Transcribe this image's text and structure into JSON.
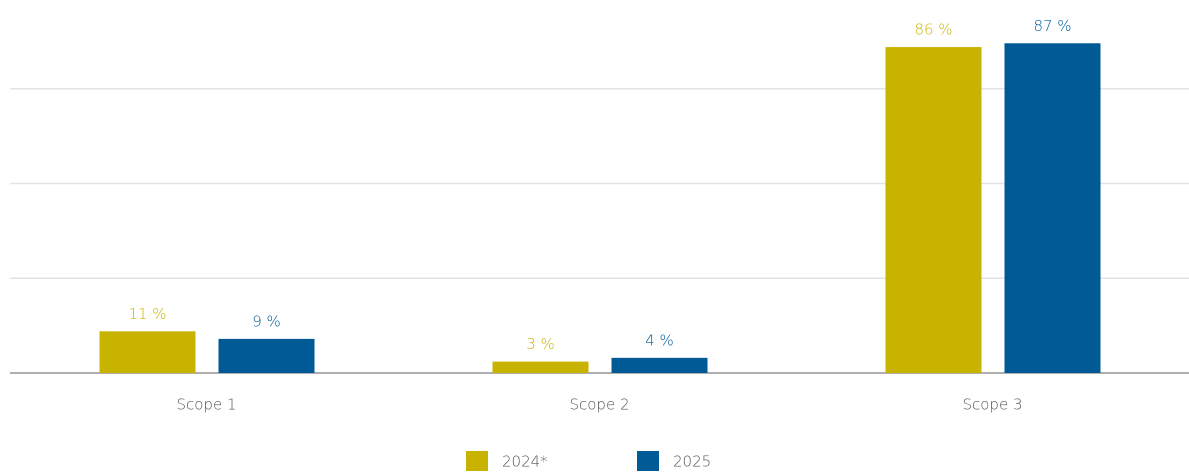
{
  "chart_data": {
    "type": "bar",
    "categories": [
      "Scope 1",
      "Scope 2",
      "Scope 3"
    ],
    "series": [
      {
        "name": "2024*",
        "color": "#c8b400",
        "values": [
          11,
          3,
          86
        ],
        "value_labels": [
          "11 %",
          "3 %",
          "86 %"
        ]
      },
      {
        "name": "2025",
        "color": "#005a96",
        "values": [
          9,
          4,
          87
        ],
        "value_labels": [
          "9 %",
          "4 %",
          "87 %"
        ]
      }
    ],
    "ylim": [
      0,
      100
    ],
    "yticks": [
      0,
      25,
      50,
      75
    ],
    "grid": true,
    "legend": "bottom"
  }
}
